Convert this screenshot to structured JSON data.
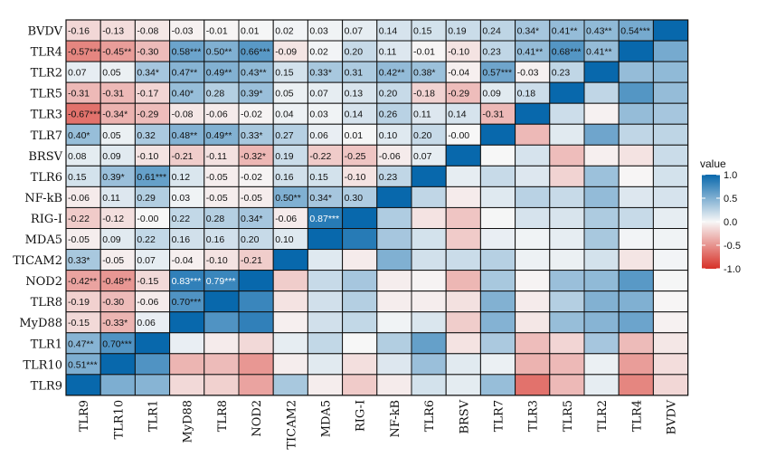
{
  "chart_data": {
    "type": "heatmap",
    "legend": {
      "title": "value",
      "ticks": [
        "1.0",
        "0.5",
        "0.0",
        "-0.5",
        "-1.0"
      ],
      "tick_values": [
        1.0,
        0.5,
        0.0,
        -0.5,
        -1.0
      ],
      "placement": "right",
      "colors": {
        "low": "#d73027",
        "mid": "#f7f7f7",
        "high": "#0868ac"
      }
    },
    "rows": [
      "BVDV",
      "TLR4",
      "TLR2",
      "TLR5",
      "TLR3",
      "TLR7",
      "BRSV",
      "TLR6",
      "NF-kB",
      "RIG-I",
      "MDA5",
      "TICAM2",
      "NOD2",
      "TLR8",
      "MyD88",
      "TLR1",
      "TLR10",
      "TLR9"
    ],
    "columns": [
      "TLR9",
      "TLR10",
      "TLR1",
      "MyD88",
      "TLR8",
      "NOD2",
      "TICAM2",
      "MDA5",
      "RIG-I",
      "NF-kB",
      "TLR6",
      "BRSV",
      "TLR7",
      "TLR3",
      "TLR5",
      "TLR2",
      "TLR4",
      "BVDV"
    ],
    "labels": [
      [
        "-0.16",
        "-0.13",
        "-0.08",
        "-0.03",
        "-0.01",
        "0.01",
        "0.02",
        "0.03",
        "0.07",
        "0.14",
        "0.15",
        "0.19",
        "0.24",
        "0.34*",
        "0.41**",
        "0.43**",
        "0.54***",
        ""
      ],
      [
        "-0.57***",
        "-0.45**",
        "-0.30",
        "0.58***",
        "0.50**",
        "0.66***",
        "-0.09",
        "0.02",
        "0.20",
        "0.11",
        "-0.01",
        "-0.10",
        "0.23",
        "0.41**",
        "0.68***",
        "0.41**",
        "",
        ""
      ],
      [
        "0.07",
        "0.05",
        "0.34*",
        "0.47**",
        "0.49**",
        "0.43**",
        "0.15",
        "0.33*",
        "0.31",
        "0.42**",
        "0.38*",
        "-0.04",
        "0.57***",
        "-0.03",
        "0.23",
        "",
        "",
        ""
      ],
      [
        "-0.31",
        "-0.31",
        "-0.17",
        "0.40*",
        "0.28",
        "0.39*",
        "0.05",
        "0.07",
        "0.13",
        "0.20",
        "-0.18",
        "-0.29",
        "0.09",
        "0.18",
        "",
        "",
        "",
        ""
      ],
      [
        "-0.67***",
        "-0.34*",
        "-0.29",
        "-0.08",
        "-0.06",
        "-0.02",
        "0.04",
        "0.03",
        "0.14",
        "0.26",
        "0.11",
        "0.14",
        "-0.31",
        "",
        "",
        "",
        "",
        ""
      ],
      [
        "0.40*",
        "0.05",
        "0.32",
        "0.48**",
        "0.49**",
        "0.33*",
        "0.27",
        "0.06",
        "0.01",
        "0.10",
        "0.20",
        "-0.00",
        "",
        "",
        "",
        "",
        "",
        ""
      ],
      [
        "0.08",
        "0.09",
        "-0.10",
        "-0.21",
        "-0.11",
        "-0.32*",
        "0.19",
        "-0.22",
        "-0.25",
        "-0.06",
        "0.07",
        "",
        "",
        "",
        "",
        "",
        "",
        ""
      ],
      [
        "0.15",
        "0.39*",
        "0.61***",
        "0.12",
        "-0.05",
        "-0.02",
        "0.16",
        "0.15",
        "-0.10",
        "0.23",
        "",
        "",
        "",
        "",
        "",
        "",
        "",
        ""
      ],
      [
        "-0.06",
        "0.11",
        "0.29",
        "0.03",
        "-0.05",
        "-0.05",
        "0.50**",
        "0.34*",
        "0.30",
        "",
        "",
        "",
        "",
        "",
        "",
        "",
        "",
        ""
      ],
      [
        "-0.22",
        "-0.12",
        "-0.00",
        "0.22",
        "0.28",
        "0.34*",
        "-0.06",
        "0.87***",
        "",
        "",
        "",
        "",
        "",
        "",
        "",
        "",
        "",
        ""
      ],
      [
        "-0.05",
        "0.09",
        "0.22",
        "0.16",
        "0.16",
        "0.20",
        "0.10",
        "",
        "",
        "",
        "",
        "",
        "",
        "",
        "",
        "",
        "",
        ""
      ],
      [
        "0.33*",
        "-0.05",
        "0.07",
        "-0.04",
        "-0.10",
        "-0.21",
        "",
        "",
        "",
        "",
        "",
        "",
        "",
        "",
        "",
        "",
        "",
        ""
      ],
      [
        "-0.42**",
        "-0.48**",
        "-0.15",
        "0.83***",
        "0.79***",
        "",
        "",
        "",
        "",
        "",
        "",
        "",
        "",
        "",
        "",
        "",
        "",
        ""
      ],
      [
        "-0.19",
        "-0.30",
        "-0.06",
        "0.70***",
        "",
        "",
        "",
        "",
        "",
        "",
        "",
        "",
        "",
        "",
        "",
        "",
        "",
        ""
      ],
      [
        "-0.15",
        "-0.33*",
        "0.06",
        "",
        "",
        "",
        "",
        "",
        "",
        "",
        "",
        "",
        "",
        "",
        "",
        "",
        "",
        ""
      ],
      [
        "0.47**",
        "0.70***",
        "",
        "",
        "",
        "",
        "",
        "",
        "",
        "",
        "",
        "",
        "",
        "",
        "",
        "",
        "",
        ""
      ],
      [
        "0.51***",
        "",
        "",
        "",
        "",
        "",
        "",
        "",
        "",
        "",
        "",
        "",
        "",
        "",
        "",
        "",
        "",
        ""
      ],
      [
        "",
        "",
        "",
        "",
        "",
        "",
        "",
        "",
        "",
        "",
        "",
        "",
        "",
        "",
        "",
        "",
        "",
        ""
      ]
    ]
  }
}
